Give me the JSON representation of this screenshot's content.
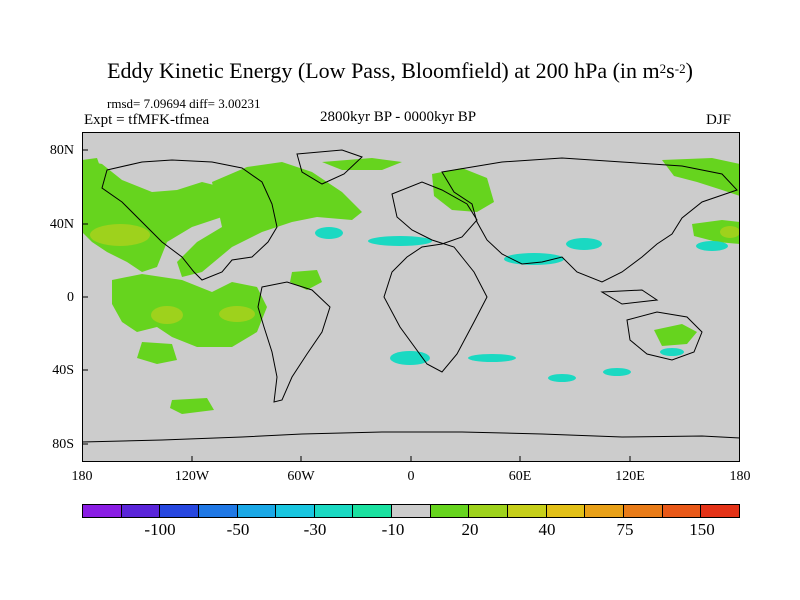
{
  "title": {
    "main": "Eddy Kinetic Energy (Low Pass, Bloomfield) at 200 hPa (in m",
    "sup1": "2",
    "mid": "s",
    "sup2": "-2",
    "end": ")"
  },
  "stats": "rmsd= 7.09694 diff= 3.00231",
  "experiment": "Expt = tfMFK-tfmea",
  "period": "2800kyr BP - 0000kyr BP",
  "season": "DJF",
  "axes": {
    "lat_labels": [
      "80N",
      "40N",
      "0",
      "40S",
      "80S"
    ],
    "lon_labels": [
      "180",
      "120W",
      "60W",
      "0",
      "60E",
      "120E",
      "180"
    ]
  },
  "colorbar": {
    "colors": [
      "#8a1de4",
      "#5a25d9",
      "#2747e0",
      "#1f78e5",
      "#1aa8e6",
      "#19c6e0",
      "#1ad9c2",
      "#1ae1a0",
      "#cccccc",
      "#66d41e",
      "#9ed21c",
      "#c6cf1a",
      "#e2c018",
      "#e8a018",
      "#e87b18",
      "#e85818",
      "#e43318"
    ],
    "labels": [
      "-100",
      "-50",
      "-30",
      "-10",
      "20",
      "40",
      "75",
      "150"
    ]
  },
  "map_colors": {
    "background": "#cccccc",
    "positive": "#66d41e",
    "positive_high": "#9ed21c",
    "negative": "#1ad9c2"
  }
}
